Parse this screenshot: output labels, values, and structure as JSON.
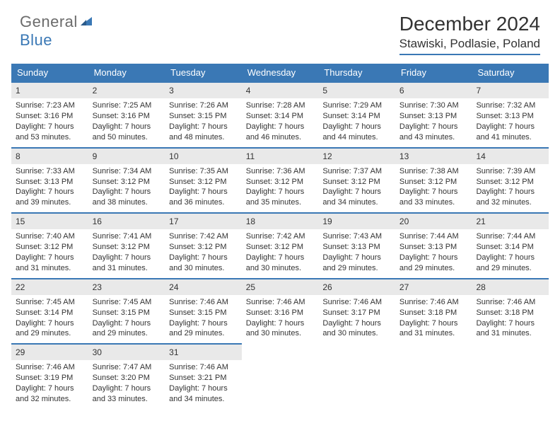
{
  "brand": {
    "part1": "General",
    "part2": "Blue"
  },
  "title": "December 2024",
  "location": "Stawiski, Podlasie, Poland",
  "colors": {
    "accent": "#3a78b5",
    "header_bg": "#3a78b5",
    "header_text": "#ffffff",
    "daynum_bg": "#e9e9e9",
    "text": "#333333",
    "logo_gray": "#6b6b6b"
  },
  "days_of_week": [
    "Sunday",
    "Monday",
    "Tuesday",
    "Wednesday",
    "Thursday",
    "Friday",
    "Saturday"
  ],
  "weeks": [
    [
      {
        "n": "1",
        "sunrise": "Sunrise: 7:23 AM",
        "sunset": "Sunset: 3:16 PM",
        "day": "Daylight: 7 hours and 53 minutes."
      },
      {
        "n": "2",
        "sunrise": "Sunrise: 7:25 AM",
        "sunset": "Sunset: 3:16 PM",
        "day": "Daylight: 7 hours and 50 minutes."
      },
      {
        "n": "3",
        "sunrise": "Sunrise: 7:26 AM",
        "sunset": "Sunset: 3:15 PM",
        "day": "Daylight: 7 hours and 48 minutes."
      },
      {
        "n": "4",
        "sunrise": "Sunrise: 7:28 AM",
        "sunset": "Sunset: 3:14 PM",
        "day": "Daylight: 7 hours and 46 minutes."
      },
      {
        "n": "5",
        "sunrise": "Sunrise: 7:29 AM",
        "sunset": "Sunset: 3:14 PM",
        "day": "Daylight: 7 hours and 44 minutes."
      },
      {
        "n": "6",
        "sunrise": "Sunrise: 7:30 AM",
        "sunset": "Sunset: 3:13 PM",
        "day": "Daylight: 7 hours and 43 minutes."
      },
      {
        "n": "7",
        "sunrise": "Sunrise: 7:32 AM",
        "sunset": "Sunset: 3:13 PM",
        "day": "Daylight: 7 hours and 41 minutes."
      }
    ],
    [
      {
        "n": "8",
        "sunrise": "Sunrise: 7:33 AM",
        "sunset": "Sunset: 3:13 PM",
        "day": "Daylight: 7 hours and 39 minutes."
      },
      {
        "n": "9",
        "sunrise": "Sunrise: 7:34 AM",
        "sunset": "Sunset: 3:12 PM",
        "day": "Daylight: 7 hours and 38 minutes."
      },
      {
        "n": "10",
        "sunrise": "Sunrise: 7:35 AM",
        "sunset": "Sunset: 3:12 PM",
        "day": "Daylight: 7 hours and 36 minutes."
      },
      {
        "n": "11",
        "sunrise": "Sunrise: 7:36 AM",
        "sunset": "Sunset: 3:12 PM",
        "day": "Daylight: 7 hours and 35 minutes."
      },
      {
        "n": "12",
        "sunrise": "Sunrise: 7:37 AM",
        "sunset": "Sunset: 3:12 PM",
        "day": "Daylight: 7 hours and 34 minutes."
      },
      {
        "n": "13",
        "sunrise": "Sunrise: 7:38 AM",
        "sunset": "Sunset: 3:12 PM",
        "day": "Daylight: 7 hours and 33 minutes."
      },
      {
        "n": "14",
        "sunrise": "Sunrise: 7:39 AM",
        "sunset": "Sunset: 3:12 PM",
        "day": "Daylight: 7 hours and 32 minutes."
      }
    ],
    [
      {
        "n": "15",
        "sunrise": "Sunrise: 7:40 AM",
        "sunset": "Sunset: 3:12 PM",
        "day": "Daylight: 7 hours and 31 minutes."
      },
      {
        "n": "16",
        "sunrise": "Sunrise: 7:41 AM",
        "sunset": "Sunset: 3:12 PM",
        "day": "Daylight: 7 hours and 31 minutes."
      },
      {
        "n": "17",
        "sunrise": "Sunrise: 7:42 AM",
        "sunset": "Sunset: 3:12 PM",
        "day": "Daylight: 7 hours and 30 minutes."
      },
      {
        "n": "18",
        "sunrise": "Sunrise: 7:42 AM",
        "sunset": "Sunset: 3:12 PM",
        "day": "Daylight: 7 hours and 30 minutes."
      },
      {
        "n": "19",
        "sunrise": "Sunrise: 7:43 AM",
        "sunset": "Sunset: 3:13 PM",
        "day": "Daylight: 7 hours and 29 minutes."
      },
      {
        "n": "20",
        "sunrise": "Sunrise: 7:44 AM",
        "sunset": "Sunset: 3:13 PM",
        "day": "Daylight: 7 hours and 29 minutes."
      },
      {
        "n": "21",
        "sunrise": "Sunrise: 7:44 AM",
        "sunset": "Sunset: 3:14 PM",
        "day": "Daylight: 7 hours and 29 minutes."
      }
    ],
    [
      {
        "n": "22",
        "sunrise": "Sunrise: 7:45 AM",
        "sunset": "Sunset: 3:14 PM",
        "day": "Daylight: 7 hours and 29 minutes."
      },
      {
        "n": "23",
        "sunrise": "Sunrise: 7:45 AM",
        "sunset": "Sunset: 3:15 PM",
        "day": "Daylight: 7 hours and 29 minutes."
      },
      {
        "n": "24",
        "sunrise": "Sunrise: 7:46 AM",
        "sunset": "Sunset: 3:15 PM",
        "day": "Daylight: 7 hours and 29 minutes."
      },
      {
        "n": "25",
        "sunrise": "Sunrise: 7:46 AM",
        "sunset": "Sunset: 3:16 PM",
        "day": "Daylight: 7 hours and 30 minutes."
      },
      {
        "n": "26",
        "sunrise": "Sunrise: 7:46 AM",
        "sunset": "Sunset: 3:17 PM",
        "day": "Daylight: 7 hours and 30 minutes."
      },
      {
        "n": "27",
        "sunrise": "Sunrise: 7:46 AM",
        "sunset": "Sunset: 3:18 PM",
        "day": "Daylight: 7 hours and 31 minutes."
      },
      {
        "n": "28",
        "sunrise": "Sunrise: 7:46 AM",
        "sunset": "Sunset: 3:18 PM",
        "day": "Daylight: 7 hours and 31 minutes."
      }
    ],
    [
      {
        "n": "29",
        "sunrise": "Sunrise: 7:46 AM",
        "sunset": "Sunset: 3:19 PM",
        "day": "Daylight: 7 hours and 32 minutes."
      },
      {
        "n": "30",
        "sunrise": "Sunrise: 7:47 AM",
        "sunset": "Sunset: 3:20 PM",
        "day": "Daylight: 7 hours and 33 minutes."
      },
      {
        "n": "31",
        "sunrise": "Sunrise: 7:46 AM",
        "sunset": "Sunset: 3:21 PM",
        "day": "Daylight: 7 hours and 34 minutes."
      },
      null,
      null,
      null,
      null
    ]
  ]
}
